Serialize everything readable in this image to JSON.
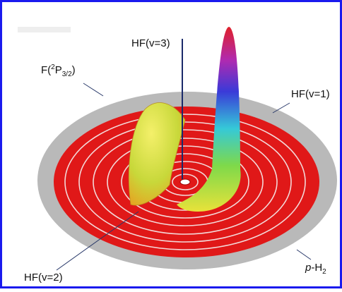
{
  "labels": {
    "hf_v3": "HF(v=3)",
    "f_state": {
      "open": "F(",
      "sup": "2",
      "term": "P",
      "sub": "3/2",
      "close": ")"
    },
    "hf_v1": "HF(v=1)",
    "hf_v2": "HF(v=2)",
    "p_h2": {
      "prefix": "p",
      "body": "-H",
      "sub": "2"
    }
  }
}
